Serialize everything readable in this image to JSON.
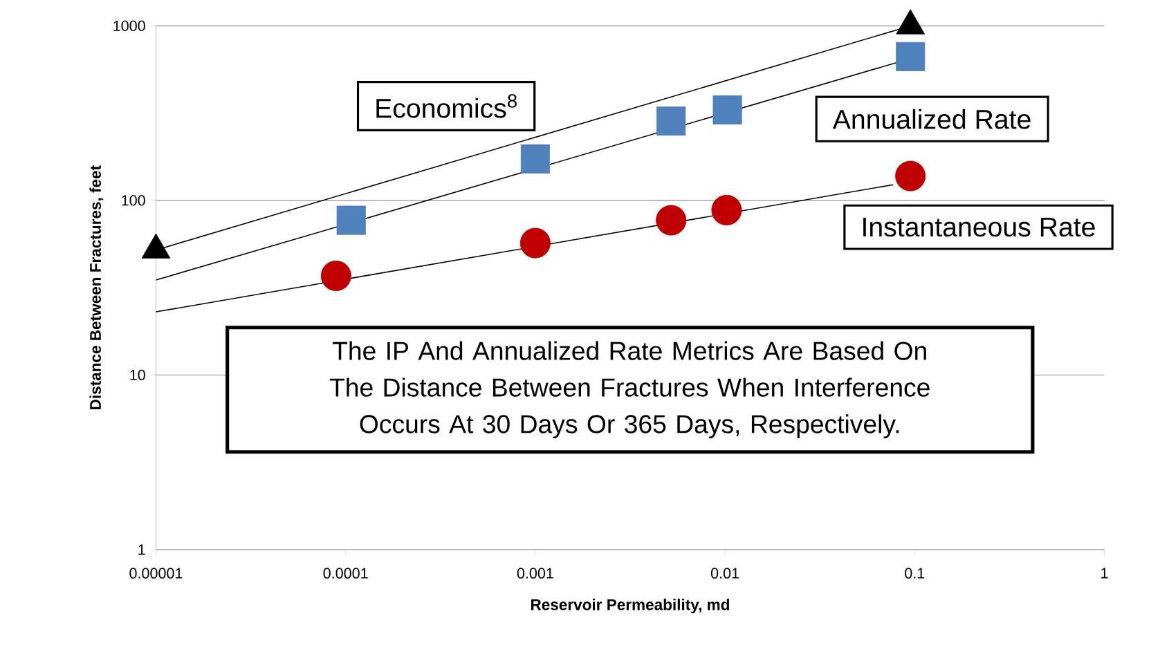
{
  "chart_data": {
    "type": "line",
    "xlabel": "Reservoir Permeability,  md",
    "ylabel": "Distance Between Fractures, feet",
    "log": "xy",
    "grid": "y",
    "xlim": [
      1e-05,
      1
    ],
    "ylim": [
      1,
      1000
    ],
    "xticks": [
      {
        "value": 1e-05,
        "label": "0.00001"
      },
      {
        "value": 0.0001,
        "label": "0.0001"
      },
      {
        "value": 0.001,
        "label": "0.001"
      },
      {
        "value": 0.01,
        "label": "0.01"
      },
      {
        "value": 0.1,
        "label": "0.1"
      },
      {
        "value": 1,
        "label": "1"
      }
    ],
    "yticks": [
      1,
      10,
      100,
      1000
    ],
    "series": [
      {
        "name": "Economics$^{8}$",
        "marker": "triangle",
        "color": "#000000",
        "x": [
          1e-05,
          0.095
        ],
        "values": [
          52,
          1000
        ]
      },
      {
        "marker": "none",
        "color": "#000000",
        "x": [
          1e-05,
          0.08
        ],
        "values": [
          35,
          615
        ]
      },
      {
        "name": "Annualized Rate",
        "type": "scatter",
        "marker": "square",
        "color": "#4f81bd",
        "x": [
          0.000107,
          0.001,
          0.0052,
          0.0103,
          0.095
        ],
        "values": [
          77,
          173,
          285,
          330,
          667
        ]
      },
      {
        "marker": "none",
        "color": "#000000",
        "x": [
          1e-05,
          0.077
        ],
        "values": [
          23,
          123
        ]
      },
      {
        "name": "Instantaneous Rate",
        "type": "scatter",
        "marker": "circle",
        "color": "#c00000",
        "x": [
          8.9e-05,
          0.001,
          0.0052,
          0.0102,
          0.095
        ],
        "values": [
          37,
          57,
          77,
          88,
          138
        ]
      }
    ],
    "annotations": [
      "The IP And Annualized Rate Metrics Are Based On The Distance Between Fractures When Interference Occurs At 30 Days Or 365 Days, Respectively."
    ]
  }
}
